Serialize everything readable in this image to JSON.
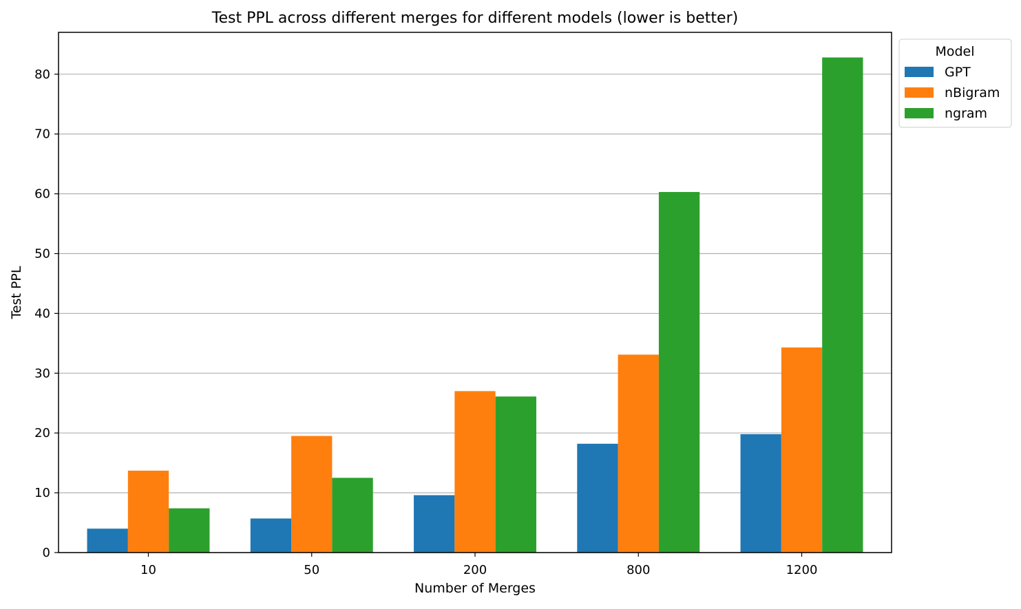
{
  "chart_data": {
    "type": "bar",
    "title": "Test PPL across different merges for different models (lower is better)",
    "xlabel": "Number of Merges",
    "ylabel": "Test PPL",
    "categories": [
      "10",
      "50",
      "200",
      "800",
      "1200"
    ],
    "series": [
      {
        "name": "GPT",
        "color": "#1f77b4",
        "values": [
          4.0,
          5.7,
          9.6,
          18.2,
          19.8
        ]
      },
      {
        "name": "nBigram",
        "color": "#ff7f0e",
        "values": [
          13.7,
          19.5,
          27.0,
          33.1,
          34.3
        ]
      },
      {
        "name": "ngram",
        "color": "#2ca02c",
        "values": [
          7.4,
          12.5,
          26.1,
          60.3,
          82.8
        ]
      }
    ],
    "ylim": [
      0,
      87.0
    ],
    "yticks": [
      0,
      10,
      20,
      30,
      40,
      50,
      60,
      70,
      80
    ],
    "grid": "y",
    "legend": {
      "title": "Model",
      "placement": "outside-top-right"
    }
  }
}
